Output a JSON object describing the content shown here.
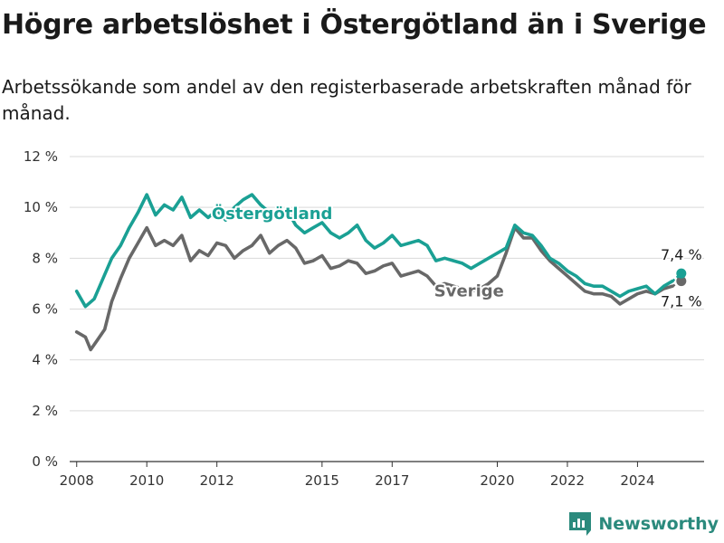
{
  "header": {
    "title": "Högre arbetslöshet i Östergötland än i Sverige",
    "subtitle": "Arbetssökande som andel av den registerbaserade arbetskraften månad för månad."
  },
  "footer": {
    "brand": "Newsworthy",
    "brand_icon": "newsworthy-logo-icon"
  },
  "colors": {
    "ostergotland": "#1aa094",
    "sverige": "#686868",
    "grid": "#d9d9d9",
    "axis": "#333333"
  },
  "chart_data": {
    "type": "line",
    "title": "Högre arbetslöshet i Östergötland än i Sverige",
    "subtitle": "Arbetssökande som andel av den registerbaserade arbetskraften månad för månad.",
    "xlabel": "",
    "ylabel": "",
    "ylim": [
      0,
      12
    ],
    "xlim": [
      2007.8,
      2025.9
    ],
    "y_ticks": [
      0,
      2,
      4,
      6,
      8,
      10,
      12
    ],
    "y_tick_labels": [
      "0 %",
      "2 %",
      "4 %",
      "6 %",
      "8 %",
      "10 %",
      "12 %"
    ],
    "x_ticks": [
      2008,
      2010,
      2012,
      2015,
      2017,
      2020,
      2022,
      2024
    ],
    "x_tick_labels": [
      "2008",
      "2010",
      "2012",
      "2015",
      "2017",
      "2020",
      "2022",
      "2024"
    ],
    "grid": "horizontal",
    "legend": "inline labels",
    "series": [
      {
        "name": "Östergötland",
        "color": "#1aa094",
        "points": [
          [
            2008.0,
            6.7
          ],
          [
            2008.25,
            6.1
          ],
          [
            2008.5,
            6.4
          ],
          [
            2008.75,
            7.2
          ],
          [
            2009.0,
            8.0
          ],
          [
            2009.25,
            8.5
          ],
          [
            2009.5,
            9.2
          ],
          [
            2009.75,
            9.8
          ],
          [
            2010.0,
            10.5
          ],
          [
            2010.25,
            9.7
          ],
          [
            2010.5,
            10.1
          ],
          [
            2010.75,
            9.9
          ],
          [
            2011.0,
            10.4
          ],
          [
            2011.25,
            9.6
          ],
          [
            2011.5,
            9.9
          ],
          [
            2011.75,
            9.6
          ],
          [
            2012.0,
            9.9
          ],
          [
            2012.25,
            9.5
          ],
          [
            2012.5,
            10.0
          ],
          [
            2012.75,
            10.3
          ],
          [
            2013.0,
            10.5
          ],
          [
            2013.25,
            10.1
          ],
          [
            2013.5,
            9.8
          ],
          [
            2013.75,
            9.6
          ],
          [
            2014.0,
            9.9
          ],
          [
            2014.25,
            9.3
          ],
          [
            2014.5,
            9.0
          ],
          [
            2014.75,
            9.2
          ],
          [
            2015.0,
            9.4
          ],
          [
            2015.25,
            9.0
          ],
          [
            2015.5,
            8.8
          ],
          [
            2015.75,
            9.0
          ],
          [
            2016.0,
            9.3
          ],
          [
            2016.25,
            8.7
          ],
          [
            2016.5,
            8.4
          ],
          [
            2016.75,
            8.6
          ],
          [
            2017.0,
            8.9
          ],
          [
            2017.25,
            8.5
          ],
          [
            2017.5,
            8.6
          ],
          [
            2017.75,
            8.7
          ],
          [
            2018.0,
            8.5
          ],
          [
            2018.25,
            7.9
          ],
          [
            2018.5,
            8.0
          ],
          [
            2018.75,
            7.9
          ],
          [
            2019.0,
            7.8
          ],
          [
            2019.25,
            7.6
          ],
          [
            2019.5,
            7.8
          ],
          [
            2019.75,
            8.0
          ],
          [
            2020.0,
            8.2
          ],
          [
            2020.25,
            8.4
          ],
          [
            2020.5,
            9.3
          ],
          [
            2020.75,
            9.0
          ],
          [
            2021.0,
            8.9
          ],
          [
            2021.25,
            8.5
          ],
          [
            2021.5,
            8.0
          ],
          [
            2021.75,
            7.8
          ],
          [
            2022.0,
            7.5
          ],
          [
            2022.25,
            7.3
          ],
          [
            2022.5,
            7.0
          ],
          [
            2022.75,
            6.9
          ],
          [
            2023.0,
            6.9
          ],
          [
            2023.25,
            6.7
          ],
          [
            2023.5,
            6.5
          ],
          [
            2023.75,
            6.7
          ],
          [
            2024.0,
            6.8
          ],
          [
            2024.25,
            6.9
          ],
          [
            2024.5,
            6.6
          ],
          [
            2024.75,
            6.9
          ],
          [
            2025.0,
            7.1
          ],
          [
            2025.25,
            7.4
          ]
        ],
        "end_value_label": "7,4 %"
      },
      {
        "name": "Sverige",
        "color": "#686868",
        "points": [
          [
            2008.0,
            5.1
          ],
          [
            2008.25,
            4.9
          ],
          [
            2008.4,
            4.4
          ],
          [
            2008.6,
            4.8
          ],
          [
            2008.8,
            5.2
          ],
          [
            2009.0,
            6.3
          ],
          [
            2009.25,
            7.2
          ],
          [
            2009.5,
            8.0
          ],
          [
            2009.75,
            8.6
          ],
          [
            2010.0,
            9.2
          ],
          [
            2010.25,
            8.5
          ],
          [
            2010.5,
            8.7
          ],
          [
            2010.75,
            8.5
          ],
          [
            2011.0,
            8.9
          ],
          [
            2011.25,
            7.9
          ],
          [
            2011.5,
            8.3
          ],
          [
            2011.75,
            8.1
          ],
          [
            2012.0,
            8.6
          ],
          [
            2012.25,
            8.5
          ],
          [
            2012.5,
            8.0
          ],
          [
            2012.75,
            8.3
          ],
          [
            2013.0,
            8.5
          ],
          [
            2013.25,
            8.9
          ],
          [
            2013.5,
            8.2
          ],
          [
            2013.75,
            8.5
          ],
          [
            2014.0,
            8.7
          ],
          [
            2014.25,
            8.4
          ],
          [
            2014.5,
            7.8
          ],
          [
            2014.75,
            7.9
          ],
          [
            2015.0,
            8.1
          ],
          [
            2015.25,
            7.6
          ],
          [
            2015.5,
            7.7
          ],
          [
            2015.75,
            7.9
          ],
          [
            2016.0,
            7.8
          ],
          [
            2016.25,
            7.4
          ],
          [
            2016.5,
            7.5
          ],
          [
            2016.75,
            7.7
          ],
          [
            2017.0,
            7.8
          ],
          [
            2017.25,
            7.3
          ],
          [
            2017.5,
            7.4
          ],
          [
            2017.75,
            7.5
          ],
          [
            2018.0,
            7.3
          ],
          [
            2018.25,
            6.9
          ],
          [
            2018.5,
            7.0
          ],
          [
            2018.75,
            6.9
          ],
          [
            2019.0,
            6.8
          ],
          [
            2019.25,
            6.7
          ],
          [
            2019.5,
            6.8
          ],
          [
            2019.75,
            7.0
          ],
          [
            2020.0,
            7.3
          ],
          [
            2020.25,
            8.2
          ],
          [
            2020.5,
            9.2
          ],
          [
            2020.75,
            8.8
          ],
          [
            2021.0,
            8.8
          ],
          [
            2021.25,
            8.3
          ],
          [
            2021.5,
            7.9
          ],
          [
            2021.75,
            7.6
          ],
          [
            2022.0,
            7.3
          ],
          [
            2022.25,
            7.0
          ],
          [
            2022.5,
            6.7
          ],
          [
            2022.75,
            6.6
          ],
          [
            2023.0,
            6.6
          ],
          [
            2023.25,
            6.5
          ],
          [
            2023.5,
            6.2
          ],
          [
            2023.75,
            6.4
          ],
          [
            2024.0,
            6.6
          ],
          [
            2024.25,
            6.7
          ],
          [
            2024.5,
            6.6
          ],
          [
            2024.75,
            6.8
          ],
          [
            2025.0,
            6.9
          ],
          [
            2025.25,
            7.1
          ]
        ],
        "end_value_label": "7,1 %"
      }
    ]
  }
}
